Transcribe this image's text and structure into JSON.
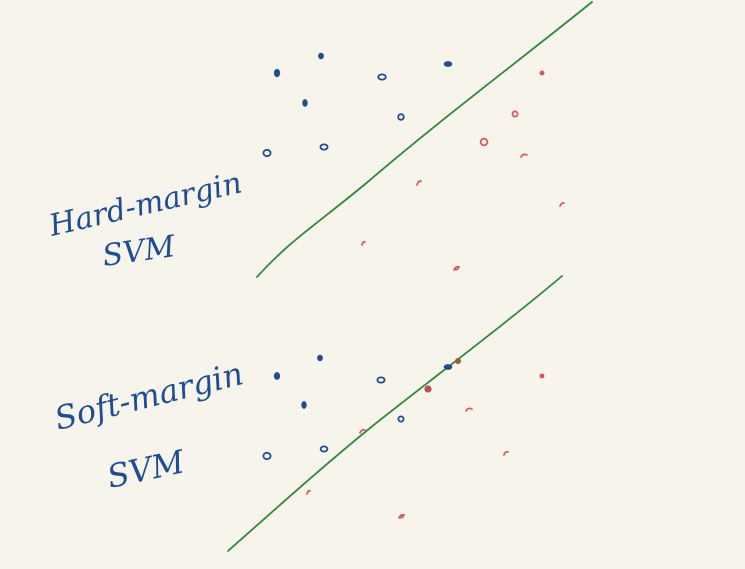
{
  "colors": {
    "background": "#f7f5eb",
    "class_a": "#1e4d96",
    "class_b": "#e0525a",
    "boundary": "#2e8b3a",
    "overlap": "#9a5a3a"
  },
  "panels": [
    {
      "id": "hard",
      "label_line1": "Hard-margin",
      "label_line2": "SVM",
      "class_a_count": 9,
      "class_b_count": 8
    },
    {
      "id": "soft",
      "label_line1": "Soft-margin",
      "label_line2": "SVM",
      "class_a_count": 9,
      "class_b_count": 9
    }
  ]
}
